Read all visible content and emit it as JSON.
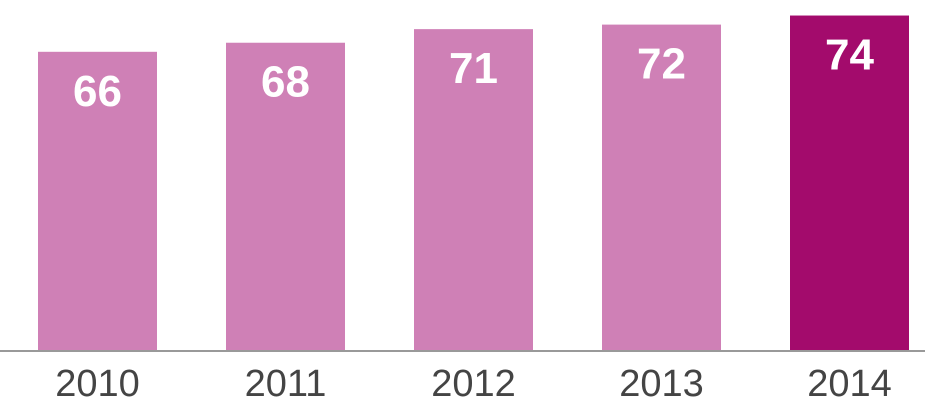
{
  "chart_data": {
    "type": "bar",
    "categories": [
      "2010",
      "2011",
      "2012",
      "2013",
      "2014"
    ],
    "values": [
      66,
      68,
      71,
      72,
      74
    ],
    "value_labels": [
      "66",
      "68",
      "71",
      "72",
      "74"
    ],
    "title": "",
    "xlabel": "",
    "ylabel": "",
    "ylim": [
      0,
      75
    ],
    "grid": false,
    "legend": "none",
    "colors": {
      "default_bar": "#cf80b6",
      "highlight_bar": "#a30b6c",
      "baseline": "#999999",
      "value_text": "#ffffff",
      "tick_text": "#444444"
    },
    "highlight_index": 4
  }
}
